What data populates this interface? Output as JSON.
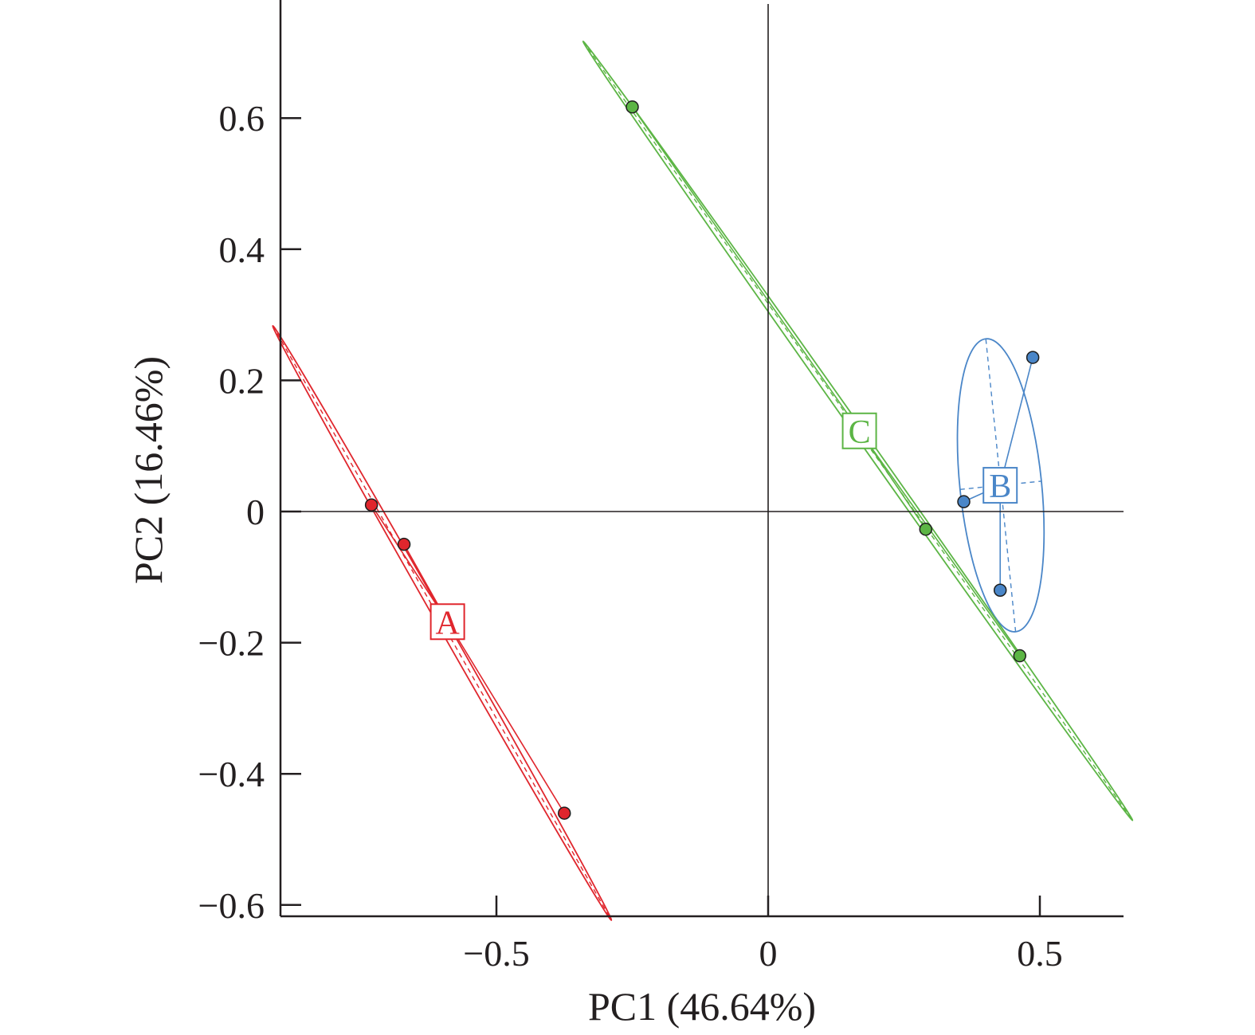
{
  "chart_data": {
    "type": "scatter",
    "title": "",
    "xlabel": "PC1 (46.64%)",
    "ylabel": "PC2 (16.46%)",
    "xlim": [
      -0.91,
      0.66
    ],
    "ylim": [
      -0.62,
      0.78
    ],
    "xticks": [
      -0.5,
      0,
      0.5
    ],
    "xtick_labels": [
      "−0.5",
      "0",
      "0.5"
    ],
    "yticks": [
      -0.6,
      -0.4,
      -0.2,
      0,
      0.2,
      0.4,
      0.6
    ],
    "ytick_labels": [
      "−0.6",
      "−0.4",
      "−0.2",
      "0",
      "0.2",
      "0.4",
      "0.6"
    ],
    "reference_lines": {
      "x": 0,
      "y": 0
    },
    "grid": false,
    "series": [
      {
        "name": "A",
        "color": "#e0262d",
        "points": [
          [
            -0.73,
            0.01
          ],
          [
            -0.67,
            -0.05
          ],
          [
            -0.375,
            -0.46
          ]
        ],
        "ellipse": {
          "center": [
            -0.6,
            -0.17
          ],
          "semi_major": 0.55,
          "semi_minor": 0.008,
          "angle_deg": -55.5
        },
        "label_position": [
          -0.59,
          -0.168
        ]
      },
      {
        "name": "B",
        "color": "#4a86c8",
        "points": [
          [
            0.36,
            0.015
          ],
          [
            0.427,
            -0.12
          ],
          [
            0.487,
            0.235
          ]
        ],
        "ellipse": {
          "center": [
            0.428,
            0.04
          ],
          "semi_major": 0.225,
          "semi_minor": 0.075,
          "angle_deg": 97
        },
        "label_position": [
          0.427,
          0.04
        ]
      },
      {
        "name": "C",
        "color": "#5cb545",
        "points": [
          [
            -0.25,
            0.617
          ],
          [
            0.29,
            -0.027
          ],
          [
            0.463,
            -0.22
          ]
        ],
        "ellipse": {
          "center": [
            0.165,
            0.123
          ],
          "semi_major": 0.78,
          "semi_minor": 0.008,
          "angle_deg": -49.6
        },
        "label_position": [
          0.168,
          0.123
        ]
      }
    ]
  }
}
